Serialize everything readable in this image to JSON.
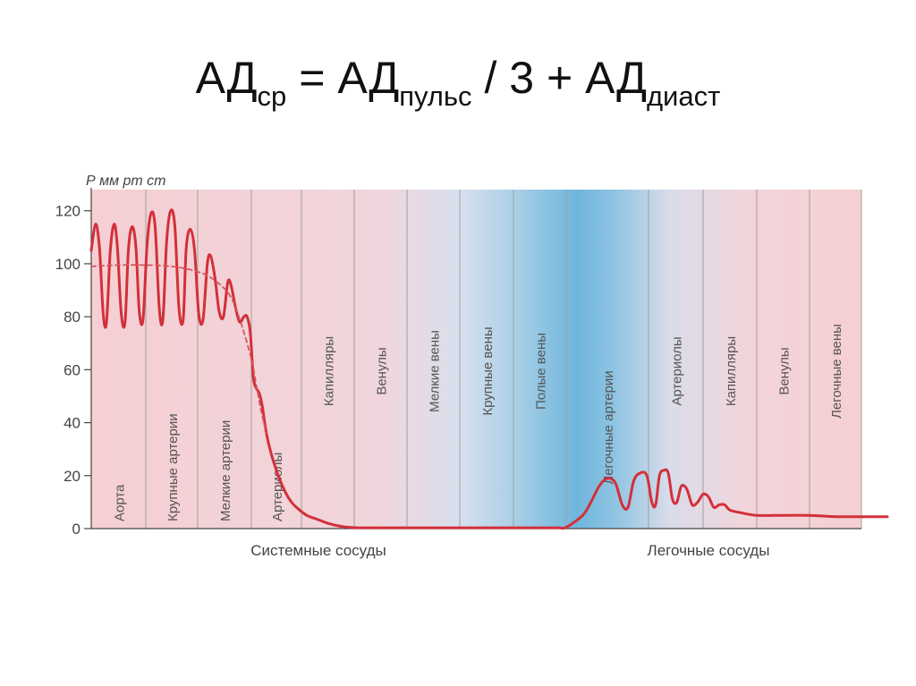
{
  "formula": {
    "lhs": "АД",
    "lhs_sub": "ср",
    "eq": "=",
    "term1": "АД",
    "term1_sub": "пульс",
    "op_div": "/",
    "divisor": "3",
    "op_plus": "+",
    "term2": "АД",
    "term2_sub": "диаст"
  },
  "chart_data": {
    "type": "area",
    "ylabel": "Р мм рт ст",
    "ylim": [
      0,
      128
    ],
    "yticks": [
      0,
      20,
      40,
      60,
      80,
      100,
      120
    ],
    "xlim": [
      0,
      14.5
    ],
    "grid": "vertical segment dividers",
    "colors": {
      "systemic_bg": "#f6d3d6",
      "pulmonary_bg": "#f6d3d6",
      "venous_blue": "#7fbfe2",
      "divider": "#a0a0a0",
      "curve": "#d2303a",
      "curve_dashed": "#d7565e",
      "axis": "#444444"
    },
    "segments": [
      "Аорта",
      "Крупные артерии",
      "Мелкие артерии",
      "Артериолы",
      "Капилляры",
      "Венулы",
      "Мелкие вены",
      "Крупные вены",
      "Полые вены",
      "Легочные артерии",
      "Артериолы",
      "Капилляры",
      "Венулы",
      "Легочные вены"
    ],
    "groups": [
      {
        "label": "Системные сосуды",
        "segments": [
          0,
          8
        ]
      },
      {
        "label": "Легочные сосуды",
        "segments": [
          9,
          13
        ]
      }
    ],
    "series": [
      {
        "role": "pressure",
        "x": [
          0,
          0.08,
          0.15,
          0.22,
          0.28,
          0.35,
          0.42,
          0.48,
          0.55,
          0.62,
          0.68,
          0.75,
          0.82,
          0.88,
          0.95,
          1.02,
          1.1,
          1.18,
          1.26,
          1.33,
          1.4,
          1.48,
          1.56,
          1.64,
          1.72,
          1.78,
          1.86,
          1.94,
          2.02,
          2.1,
          2.18,
          2.24,
          2.32,
          2.4,
          2.48,
          2.56,
          2.62,
          2.7,
          2.78,
          2.86,
          2.92,
          2.98,
          3.04,
          3.1,
          3.16,
          3.22,
          3.3,
          3.4,
          3.5,
          3.6,
          3.7,
          3.8,
          3.9,
          4.1,
          4.3,
          4.5,
          4.7,
          4.9,
          5.1,
          5.3,
          5.5,
          5.7,
          5.9,
          6.1,
          6.3,
          6.6,
          7,
          7.5,
          8,
          8.5,
          8.85,
          9.0,
          9.2,
          9.3,
          9.38,
          9.45,
          9.52,
          9.6,
          9.68,
          9.75,
          9.82,
          9.9,
          9.98,
          10.06,
          10.13,
          10.2,
          10.28,
          10.36,
          10.44,
          10.52,
          10.6,
          10.7,
          10.8,
          10.9,
          11.0,
          11.1,
          11.2,
          11.3,
          11.4,
          11.5,
          11.7,
          12.0,
          12.5,
          13.0,
          13.5,
          14.0,
          14.5
        ],
        "y": [
          105,
          115,
          106,
          81,
          78,
          105,
          115,
          106,
          81,
          78,
          105,
          114,
          106,
          82,
          79,
          106,
          119,
          114,
          83,
          79,
          108,
          120,
          114,
          83,
          79,
          106,
          113,
          105,
          81,
          79,
          100,
          103,
          95,
          82,
          80,
          93,
          92,
          84,
          78,
          80,
          80,
          74,
          57,
          53,
          51,
          46,
          36,
          28,
          22,
          17,
          13,
          10,
          8,
          5,
          3.5,
          2,
          1,
          0.5,
          0.3,
          0.3,
          0.3,
          0.3,
          0.3,
          0.3,
          0.3,
          0.3,
          0.3,
          0.3,
          0.3,
          0.3,
          0.3,
          0.5,
          5,
          10,
          15,
          18,
          19,
          17,
          9,
          8,
          18,
          21,
          20,
          10,
          9,
          20,
          22,
          21,
          11,
          10,
          16,
          15,
          9,
          10,
          13,
          12,
          8,
          9,
          9,
          7,
          6,
          5,
          5,
          5,
          4.5,
          4.5,
          4.5
        ]
      },
      {
        "role": "mean pressure",
        "dashed": true,
        "x": [
          0,
          0.5,
          1,
          1.5,
          2,
          2.3,
          2.6,
          2.8,
          3.0,
          3.1,
          3.2,
          3.3
        ],
        "y": [
          99,
          99.5,
          99.5,
          99,
          97,
          94,
          88,
          78,
          64,
          54,
          44,
          36
        ]
      }
    ]
  }
}
